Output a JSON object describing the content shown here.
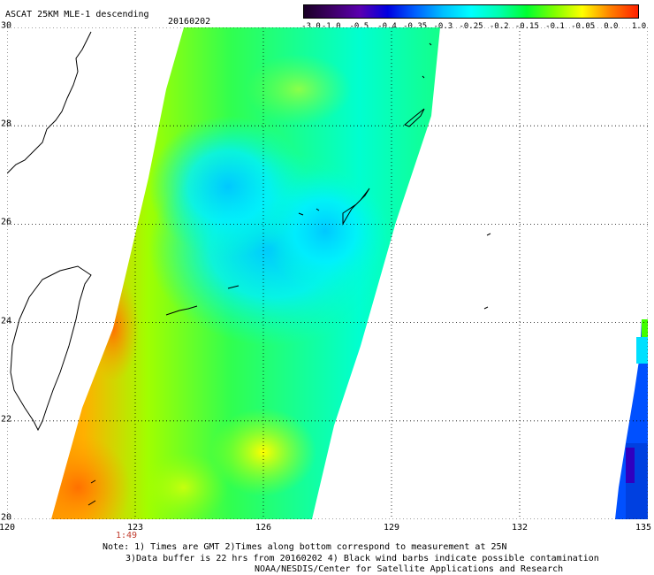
{
  "header": {
    "title": "ASCAT 25KM MLE-1 descending",
    "date": "20160202"
  },
  "colorbar": {
    "labels": [
      "-3.0",
      "-1.0",
      "-0.5",
      "-0.4",
      "-0.35",
      "-0.3",
      "-0.25",
      "-0.2",
      "-0.15",
      "-0.1",
      "-0.05",
      "0.0",
      "1.0"
    ],
    "colors": [
      "#1a0026",
      "#3d0066",
      "#5a00b0",
      "#0000e0",
      "#0060ff",
      "#00c0ff",
      "#00ffff",
      "#00ffb0",
      "#00ff30",
      "#80ff00",
      "#ffff00",
      "#ff8000",
      "#ff2000"
    ]
  },
  "map": {
    "lon_ticks": [
      "120",
      "123",
      "126",
      "129",
      "132",
      "135"
    ],
    "lat_ticks": [
      "30",
      "28",
      "26",
      "24",
      "22",
      "20"
    ],
    "lon_range": [
      120,
      135
    ],
    "lat_range": [
      20,
      30
    ],
    "swath_time": "1:49",
    "land": "black outline",
    "grid": "dotted"
  },
  "notes": {
    "line1": "Note: 1) Times are GMT 2)Times along bottom correspond to measurement at 25N",
    "line2": "3)Data buffer is 22 hrs from 20160202 4) Black wind barbs indicate possible contamination",
    "line3": "NOAA/NESDIS/Center for Satellite Applications and Research"
  }
}
